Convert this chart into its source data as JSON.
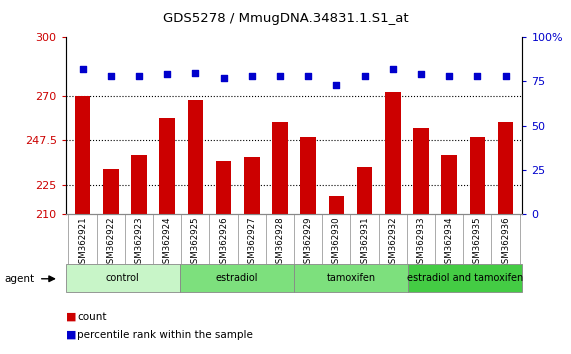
{
  "title": "GDS5278 / MmugDNA.34831.1.S1_at",
  "samples": [
    "GSM362921",
    "GSM362922",
    "GSM362923",
    "GSM362924",
    "GSM362925",
    "GSM362926",
    "GSM362927",
    "GSM362928",
    "GSM362929",
    "GSM362930",
    "GSM362931",
    "GSM362932",
    "GSM362933",
    "GSM362934",
    "GSM362935",
    "GSM362936"
  ],
  "bar_values": [
    270,
    233,
    240,
    259,
    268,
    237,
    239,
    257,
    249,
    219,
    234,
    272,
    254,
    240,
    249,
    257
  ],
  "dot_values": [
    82,
    78,
    78,
    79,
    80,
    77,
    78,
    78,
    78,
    73,
    78,
    82,
    79,
    78,
    78,
    78
  ],
  "bar_color": "#cc0000",
  "dot_color": "#0000cc",
  "ymin": 210,
  "ymax": 300,
  "yticks": [
    210,
    225,
    247.5,
    270,
    300
  ],
  "ytick_labels": [
    "210",
    "225",
    "247.5",
    "270",
    "300"
  ],
  "y2min": 0,
  "y2max": 100,
  "y2ticks": [
    0,
    25,
    50,
    75,
    100
  ],
  "y2tick_labels": [
    "0",
    "25",
    "50",
    "75",
    "100%"
  ],
  "groups": [
    {
      "label": "control",
      "start": 0,
      "end": 4,
      "color": "#c8f5c8"
    },
    {
      "label": "estradiol",
      "start": 4,
      "end": 8,
      "color": "#7de07d"
    },
    {
      "label": "tamoxifen",
      "start": 8,
      "end": 12,
      "color": "#7de07d"
    },
    {
      "label": "estradiol and tamoxifen",
      "start": 12,
      "end": 16,
      "color": "#44cc44"
    }
  ],
  "agent_label": "agent",
  "grid_dotted_values": [
    225,
    247.5,
    270
  ],
  "legend_count_label": "count",
  "legend_percentile_label": "percentile rank within the sample",
  "bar_width": 0.55,
  "plot_bg_color": "#ffffff",
  "xtick_bg_color": "#d0d0d0",
  "fig_bg": "#ffffff"
}
